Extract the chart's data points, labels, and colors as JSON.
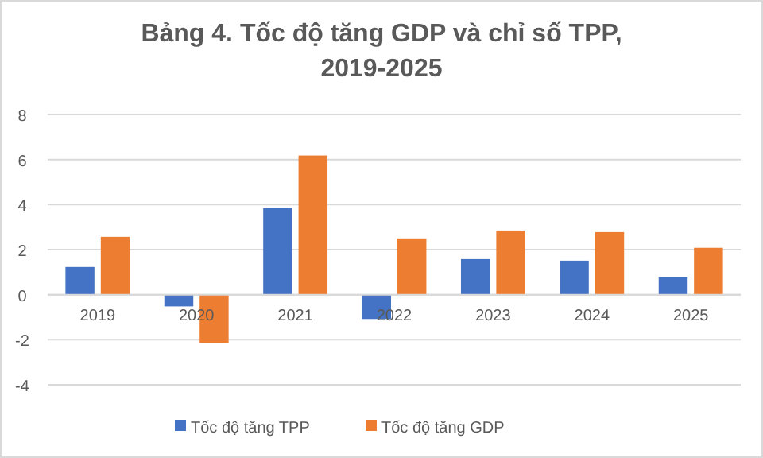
{
  "chart_data": {
    "type": "bar",
    "title": "Bảng 4. Tốc độ tăng GDP và chỉ số TPP, 2019-2025",
    "categories": [
      "2019",
      "2020",
      "2021",
      "2022",
      "2023",
      "2024",
      "2025"
    ],
    "series": [
      {
        "name": "Tốc độ tăng TPP",
        "color": "#4472c4",
        "values": [
          1.23,
          -0.52,
          3.84,
          -1.08,
          1.58,
          1.51,
          0.8
        ]
      },
      {
        "name": "Tốc độ tăng GDP",
        "color": "#ed7d31",
        "values": [
          2.57,
          -2.15,
          6.18,
          2.5,
          2.85,
          2.78,
          2.08
        ]
      }
    ],
    "ylim": [
      -4,
      8
    ],
    "yticks": [
      -4,
      -2,
      0,
      2,
      4,
      6,
      8
    ],
    "grid": "y",
    "legend": "bottom"
  }
}
